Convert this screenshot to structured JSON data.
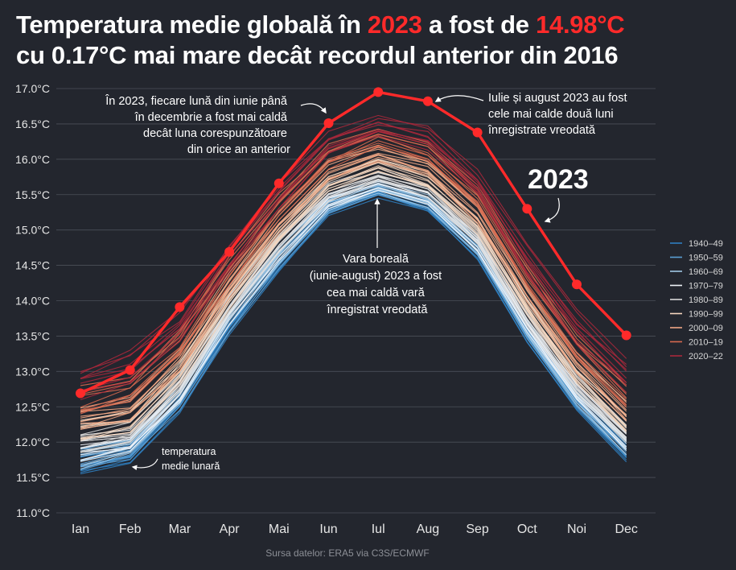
{
  "title": {
    "line1_pre": "Temperatura medie globală în ",
    "year": "2023",
    "line1_mid": " a fost de ",
    "value": "14.98°C",
    "line2": "cu 0.17°C mai mare decât recordul anterior din 2016"
  },
  "source": "Sursa datelor: ERA5 via C3S/ECMWF",
  "colors": {
    "background": "#23262e",
    "highlight": "#ff2a2a",
    "grid": "#4b4f58",
    "text": "#e6e6e6"
  },
  "annotations": {
    "all_months": [
      "În 2023, fiecare lună din iunie până",
      "în decembrie a fost mai caldă",
      "decât luna corespunzătoare",
      "din orice an anterior"
    ],
    "jul_aug": [
      "Iulie și august 2023 au fost",
      "cele mai calde două luni",
      "înregistrate vreodată"
    ],
    "year_label": "2023",
    "summer": [
      "Vara boreală",
      "(iunie-august) 2023 a fost",
      "cea mai caldă vară",
      "înregistrat vreodată"
    ],
    "monthly": [
      "temperatura",
      "medie lunară"
    ]
  },
  "chart_data": {
    "type": "line",
    "title": "Temperatura medie globală în 2023 a fost de 14.98°C",
    "xlabel": "",
    "ylabel": "",
    "categories": [
      "Ian",
      "Feb",
      "Mar",
      "Apr",
      "Mai",
      "Iun",
      "Iul",
      "Aug",
      "Sep",
      "Oct",
      "Noi",
      "Dec"
    ],
    "ylim": [
      11.0,
      17.0
    ],
    "yticks": [
      11.0,
      11.5,
      12.0,
      12.5,
      13.0,
      13.5,
      14.0,
      14.5,
      15.0,
      15.5,
      16.0,
      16.5,
      17.0
    ],
    "ytick_suffix": "°C",
    "highlight_series": {
      "name": "2023",
      "values": [
        12.69,
        13.02,
        13.91,
        14.69,
        15.66,
        16.51,
        16.95,
        16.82,
        16.38,
        15.3,
        14.23,
        13.51
      ]
    },
    "decade_series": [
      {
        "name": "1940–49",
        "color": "#2f7fc1",
        "low": [
          11.52,
          11.7,
          12.38,
          13.5,
          14.4,
          15.18,
          15.45,
          15.24,
          14.58,
          13.38,
          12.42,
          11.72
        ],
        "high": [
          11.82,
          11.96,
          12.7,
          13.8,
          14.7,
          15.4,
          15.62,
          15.42,
          14.78,
          13.6,
          12.66,
          11.98
        ]
      },
      {
        "name": "1950–59",
        "color": "#5a9fd4",
        "low": [
          11.58,
          11.75,
          12.45,
          13.55,
          14.45,
          15.22,
          15.48,
          15.28,
          14.62,
          13.45,
          12.48,
          11.78
        ],
        "high": [
          11.9,
          12.02,
          12.75,
          13.85,
          14.75,
          15.45,
          15.66,
          15.46,
          14.84,
          13.68,
          12.72,
          12.04
        ]
      },
      {
        "name": "1960–69",
        "color": "#9fc8e6",
        "low": [
          11.62,
          11.8,
          12.5,
          13.6,
          14.5,
          15.26,
          15.52,
          15.32,
          14.66,
          13.5,
          12.52,
          11.82
        ],
        "high": [
          11.95,
          12.08,
          12.8,
          13.9,
          14.8,
          15.5,
          15.7,
          15.5,
          14.88,
          13.72,
          12.76,
          12.08
        ]
      },
      {
        "name": "1970–79",
        "color": "#eef3f8",
        "low": [
          11.7,
          11.85,
          12.56,
          13.66,
          14.56,
          15.3,
          15.56,
          15.36,
          14.7,
          13.56,
          12.58,
          11.88
        ],
        "high": [
          12.02,
          12.14,
          12.86,
          13.96,
          14.86,
          15.56,
          15.76,
          15.56,
          14.94,
          13.78,
          12.82,
          12.14
        ]
      },
      {
        "name": "1980–89",
        "color": "#d9d9d9",
        "low": [
          11.82,
          11.96,
          12.66,
          13.76,
          14.66,
          15.4,
          15.66,
          15.46,
          14.8,
          13.66,
          12.68,
          11.98
        ],
        "high": [
          12.16,
          12.28,
          12.98,
          14.08,
          14.98,
          15.66,
          15.88,
          15.68,
          15.04,
          13.9,
          12.94,
          12.24
        ]
      },
      {
        "name": "1990–99",
        "color": "#f6d7bf",
        "low": [
          11.98,
          12.1,
          12.8,
          13.88,
          14.8,
          15.52,
          15.8,
          15.6,
          14.94,
          13.8,
          12.8,
          12.1
        ],
        "high": [
          12.34,
          12.44,
          13.14,
          14.22,
          15.12,
          15.8,
          16.02,
          15.82,
          15.2,
          14.06,
          13.08,
          12.4
        ]
      },
      {
        "name": "2000–09",
        "color": "#f0a785",
        "low": [
          12.16,
          12.28,
          12.98,
          14.04,
          14.96,
          15.68,
          15.96,
          15.76,
          15.1,
          13.98,
          12.98,
          12.28
        ],
        "high": [
          12.54,
          12.64,
          13.34,
          14.4,
          15.3,
          15.98,
          16.2,
          16.0,
          15.38,
          14.26,
          13.28,
          12.6
        ]
      },
      {
        "name": "2010–19",
        "color": "#d8694f",
        "low": [
          12.36,
          12.5,
          13.18,
          14.22,
          15.14,
          15.86,
          16.14,
          15.94,
          15.3,
          14.18,
          13.18,
          12.48
        ],
        "high": [
          12.8,
          12.96,
          13.62,
          14.64,
          15.52,
          16.22,
          16.44,
          16.24,
          15.64,
          14.52,
          13.52,
          12.84
        ]
      },
      {
        "name": "2020–22",
        "color": "#a9283b",
        "low": [
          12.6,
          12.78,
          13.42,
          14.4,
          15.3,
          16.02,
          16.3,
          16.12,
          15.48,
          14.36,
          13.38,
          12.7
        ],
        "high": [
          13.02,
          13.3,
          13.9,
          14.82,
          15.7,
          16.4,
          16.62,
          16.48,
          15.86,
          14.8,
          13.88,
          13.22
        ]
      }
    ]
  }
}
